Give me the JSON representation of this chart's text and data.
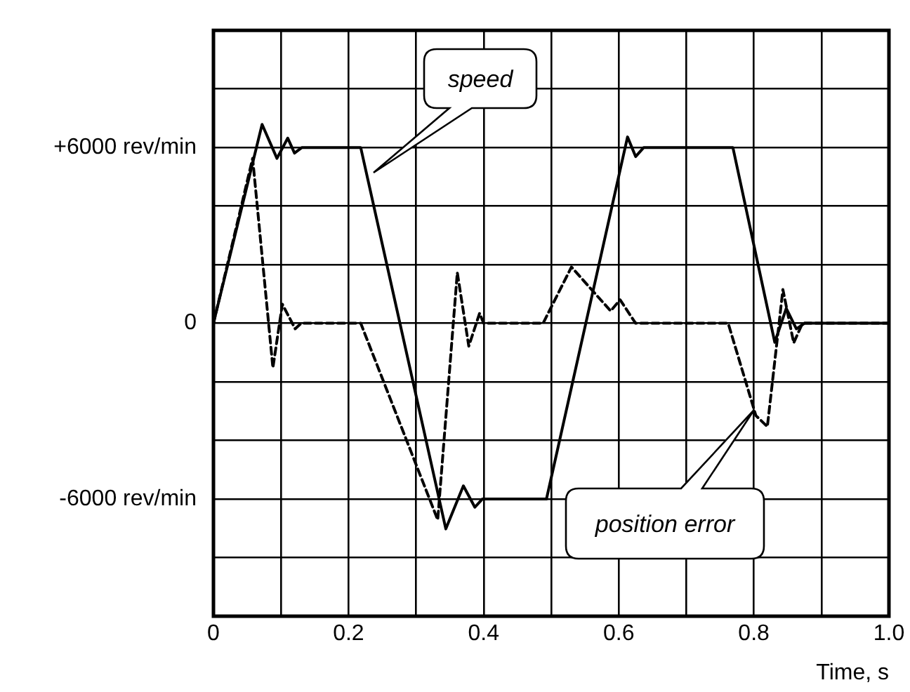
{
  "chart_data": {
    "type": "line",
    "xlabel": "Time, s",
    "xlim": [
      0,
      1
    ],
    "xticks": [
      0,
      {
        "value": 0.1,
        "label": null
      },
      0.2,
      {
        "value": 0.3,
        "label": null
      },
      0.4,
      {
        "value": 0.5,
        "label": null
      },
      0.6,
      {
        "value": 0.7,
        "label": null
      },
      0.8,
      {
        "value": 0.9,
        "label": null
      },
      {
        "value": 1,
        "label": "1.0"
      }
    ],
    "ylim": [
      -10000,
      10000
    ],
    "yticks": [
      {
        "value": -10000,
        "label": null
      },
      {
        "value": -8000,
        "label": null
      },
      {
        "value": -6000,
        "label": "-6000 rev/min"
      },
      {
        "value": -4000,
        "label": null
      },
      {
        "value": -2000,
        "label": null
      },
      0,
      {
        "value": 2000,
        "label": null
      },
      {
        "value": 4000,
        "label": null
      },
      {
        "value": 6000,
        "label": "+6000 rev/min"
      },
      {
        "value": 8000,
        "label": null
      },
      {
        "value": 10000,
        "label": null
      }
    ],
    "grid": true,
    "legend": false,
    "marker": "none",
    "series": [
      {
        "color": "#000000",
        "line_style": "solid",
        "x": [
          0,
          0.072,
          0.094,
          0.11,
          0.12,
          0.131,
          0.218,
          0.344,
          0.37,
          0.387,
          0.398,
          0.493,
          0.613,
          0.625,
          0.637,
          0.769,
          0.831,
          0.848,
          0.863,
          0.875,
          1
        ],
        "values": [
          0,
          6790,
          5630,
          6320,
          5810,
          6000,
          6000,
          -7020,
          -5550,
          -6280,
          -6000,
          -6000,
          6360,
          5690,
          6000,
          6000,
          -650,
          510,
          -190,
          0,
          0
        ]
      },
      {
        "color": "#000000",
        "line_style": "dashed",
        "x": [
          0,
          0.058,
          0.088,
          0.102,
          0.121,
          0.13,
          0.218,
          0.332,
          0.361,
          0.378,
          0.394,
          0.4,
          0.488,
          0.53,
          0.588,
          0.602,
          0.625,
          0.762,
          0.803,
          0.82,
          0.843,
          0.859,
          0.872,
          1
        ],
        "values": [
          0,
          5630,
          -1520,
          650,
          -190,
          0,
          0,
          -6710,
          1730,
          -780,
          340,
          0,
          0,
          1920,
          420,
          800,
          0,
          0,
          -3150,
          -3530,
          1150,
          -670,
          0,
          0
        ]
      }
    ],
    "annotations": [
      "speed",
      "position error"
    ]
  }
}
